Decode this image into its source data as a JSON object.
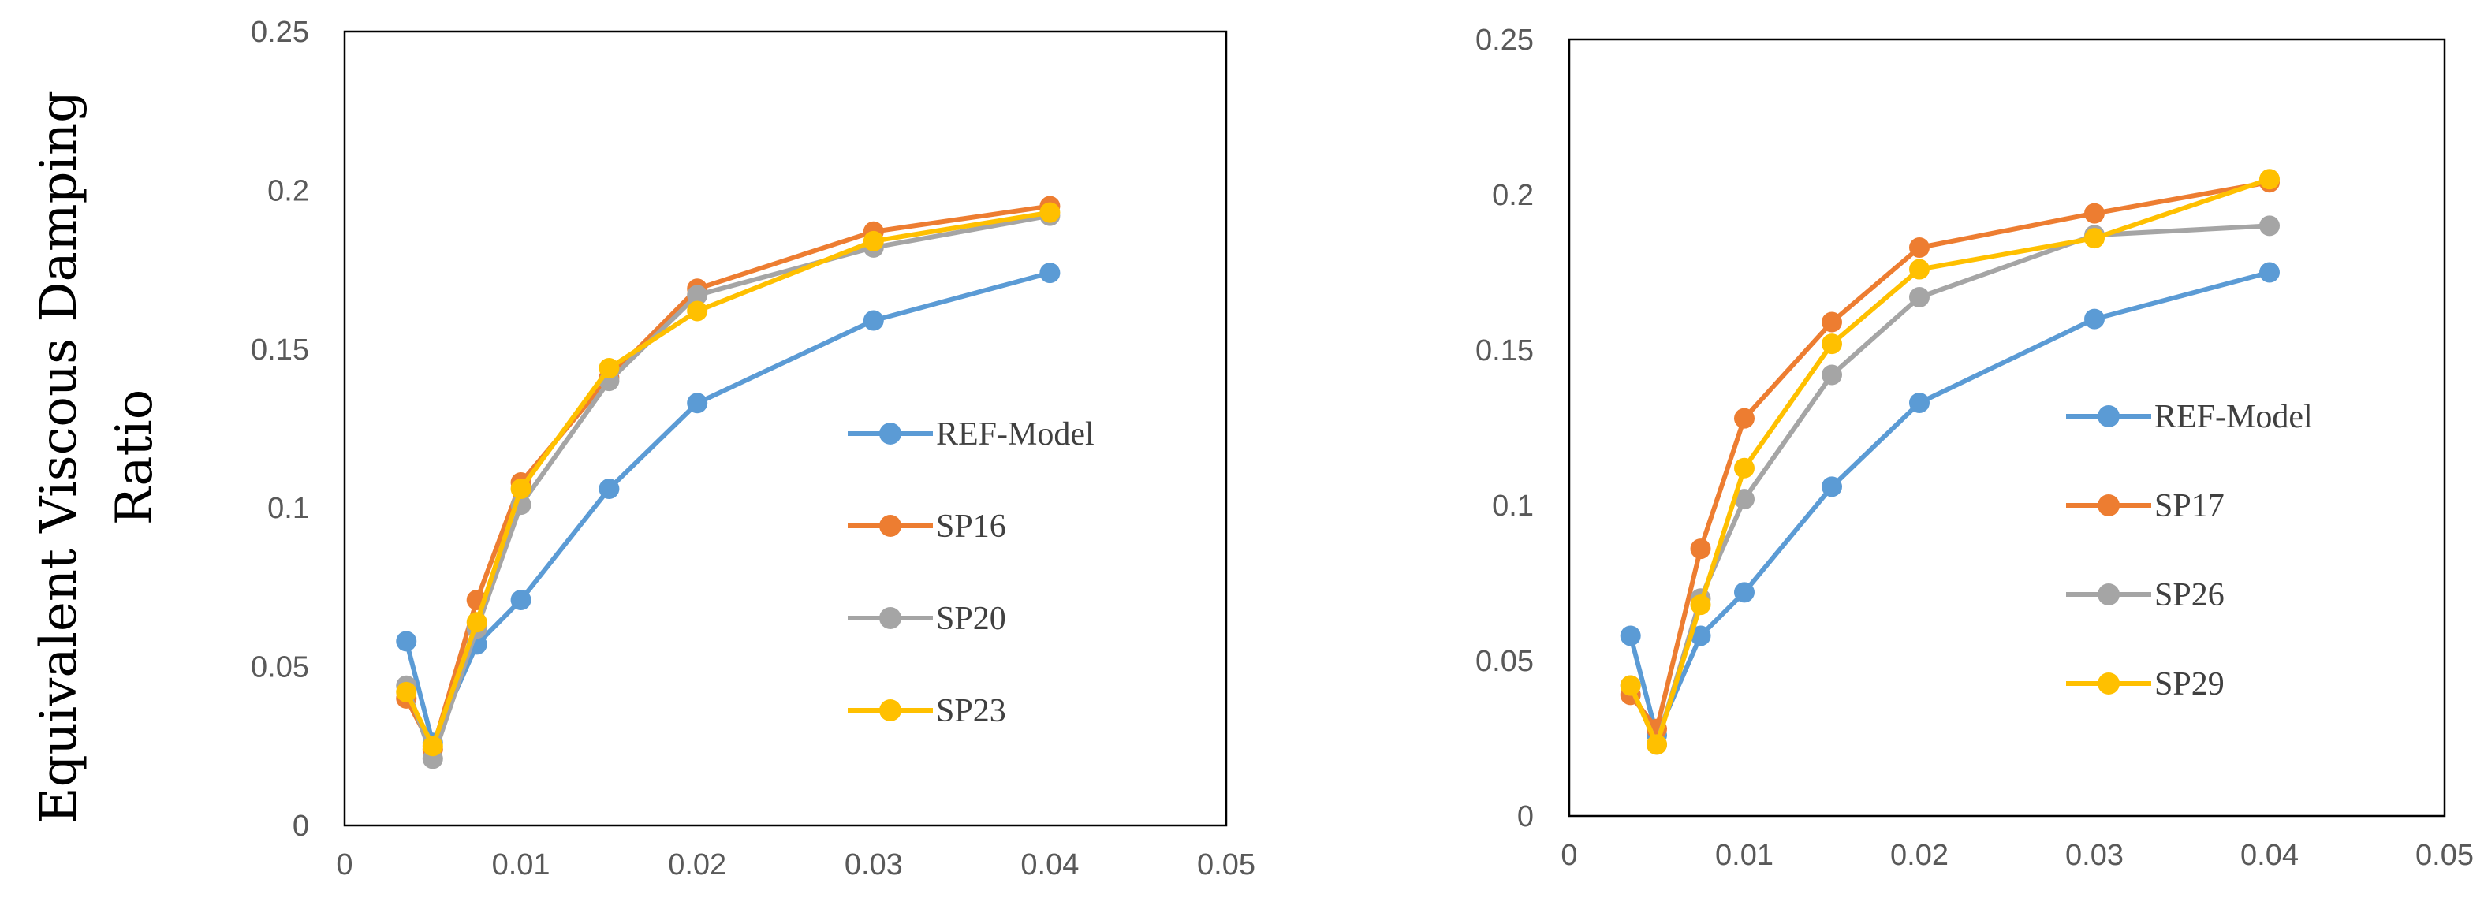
{
  "ylabel": [
    "Equivalent Viscous Damping",
    "Ratio"
  ],
  "colors": {
    "REF-Model": "#5b9bd5",
    "SP16": "#ed7d31",
    "SP17": "#ed7d31",
    "SP20": "#a5a5a5",
    "SP26": "#a5a5a5",
    "SP23": "#ffc000",
    "SP29": "#ffc000"
  },
  "chart_data": [
    {
      "type": "line",
      "title": "",
      "xlabel": "",
      "ylabel": "Equivalent Viscous Damping Ratio",
      "xlim": [
        0,
        0.05
      ],
      "ylim": [
        0,
        0.25
      ],
      "x_ticks": [
        "0",
        "0.01",
        "0.02",
        "0.03",
        "0.04",
        "0.05"
      ],
      "y_ticks": [
        "0",
        "0.05",
        "0.1",
        "0.15",
        "0.2",
        "0.25"
      ],
      "grid": false,
      "legend_position": "right",
      "series": [
        {
          "name": "REF-Model",
          "x": [
            0.0035,
            0.005,
            0.0075,
            0.01,
            0.015,
            0.02,
            0.03,
            0.04
          ],
          "values": [
            0.058,
            0.026,
            0.057,
            0.071,
            0.106,
            0.133,
            0.159,
            0.174
          ]
        },
        {
          "name": "SP16",
          "x": [
            0.0035,
            0.005,
            0.0075,
            0.01,
            0.015,
            0.02,
            0.03,
            0.04
          ],
          "values": [
            0.04,
            0.024,
            0.071,
            0.108,
            0.141,
            0.169,
            0.187,
            0.195
          ]
        },
        {
          "name": "SP20",
          "x": [
            0.0035,
            0.005,
            0.0075,
            0.01,
            0.015,
            0.02,
            0.03,
            0.04
          ],
          "values": [
            0.044,
            0.021,
            0.062,
            0.101,
            0.14,
            0.167,
            0.182,
            0.192
          ]
        },
        {
          "name": "SP23",
          "x": [
            0.0035,
            0.005,
            0.0075,
            0.01,
            0.015,
            0.02,
            0.03,
            0.04
          ],
          "values": [
            0.042,
            0.025,
            0.064,
            0.106,
            0.144,
            0.162,
            0.184,
            0.193
          ]
        }
      ]
    },
    {
      "type": "line",
      "title": "",
      "xlabel": "",
      "ylabel": "",
      "xlim": [
        0,
        0.05
      ],
      "ylim": [
        0,
        0.25
      ],
      "x_ticks": [
        "0",
        "0.01",
        "0.02",
        "0.03",
        "0.04",
        "0.05"
      ],
      "y_ticks": [
        "0",
        "0.05",
        "0.1",
        "0.15",
        "0.2",
        "0.25"
      ],
      "grid": false,
      "legend_position": "right",
      "series": [
        {
          "name": "REF-Model",
          "x": [
            0.0035,
            0.005,
            0.0075,
            0.01,
            0.015,
            0.02,
            0.03,
            0.04
          ],
          "values": [
            0.058,
            0.026,
            0.058,
            0.072,
            0.106,
            0.133,
            0.16,
            0.175
          ]
        },
        {
          "name": "SP17",
          "x": [
            0.0035,
            0.005,
            0.0075,
            0.01,
            0.015,
            0.02,
            0.03,
            0.04
          ],
          "values": [
            0.039,
            0.028,
            0.086,
            0.128,
            0.159,
            0.183,
            0.194,
            0.204
          ]
        },
        {
          "name": "SP26",
          "x": [
            0.0035,
            0.005,
            0.0075,
            0.01,
            0.015,
            0.02,
            0.03,
            0.04
          ],
          "values": [
            0.042,
            0.023,
            0.07,
            0.102,
            0.142,
            0.167,
            0.187,
            0.19
          ]
        },
        {
          "name": "SP29",
          "x": [
            0.0035,
            0.005,
            0.0075,
            0.01,
            0.015,
            0.02,
            0.03,
            0.04
          ],
          "values": [
            0.042,
            0.023,
            0.068,
            0.112,
            0.152,
            0.176,
            0.186,
            0.205
          ]
        }
      ]
    }
  ]
}
